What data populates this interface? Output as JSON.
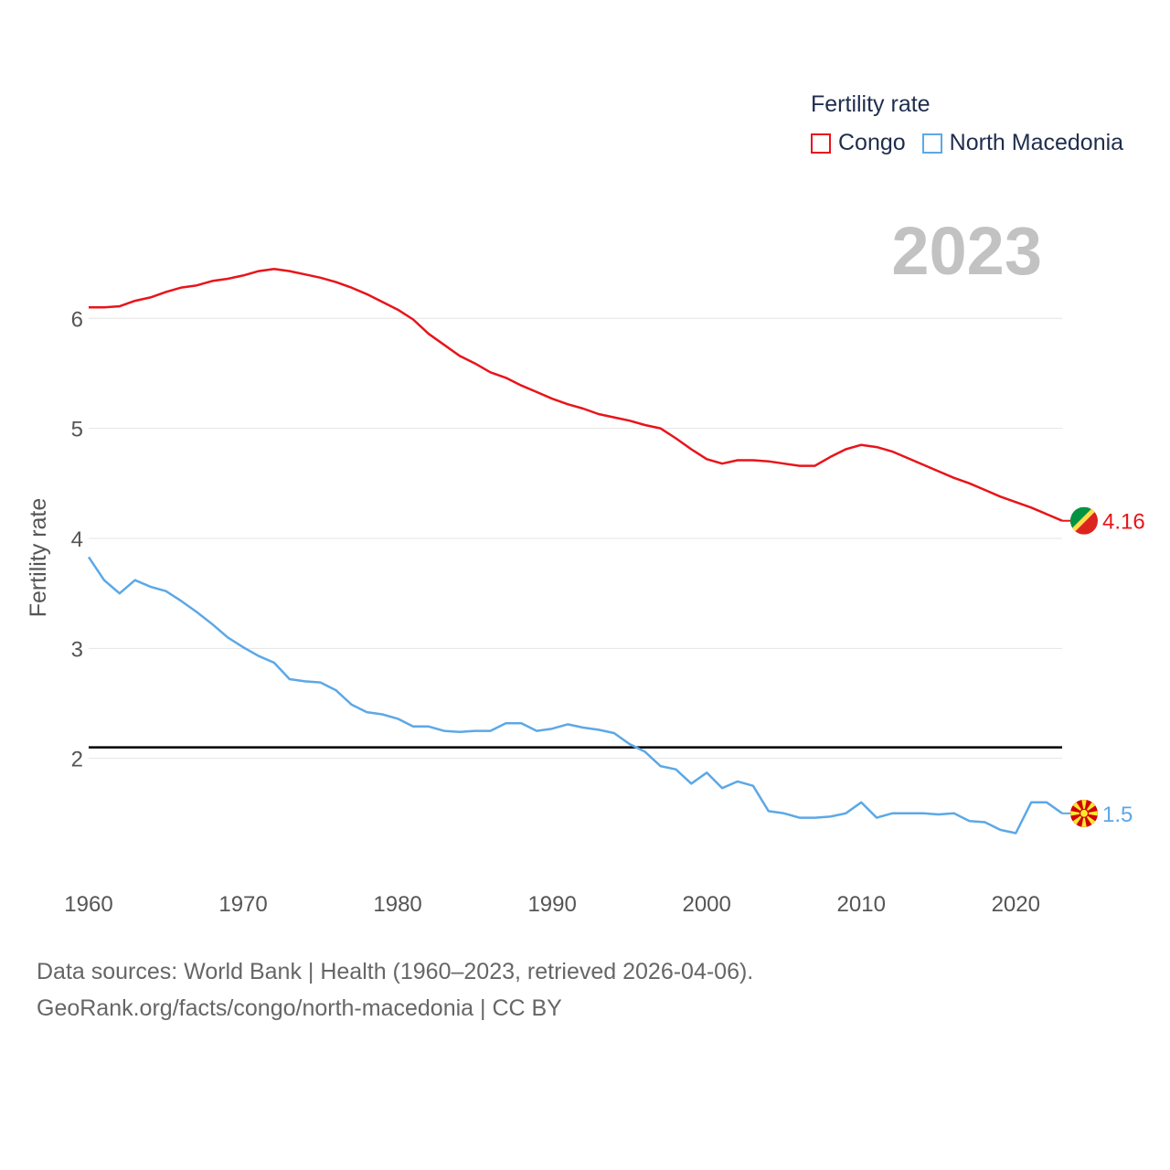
{
  "legend": {
    "title": "Fertility rate",
    "items": [
      {
        "label": "Congo",
        "color": "#e8141b"
      },
      {
        "label": "North Macedonia",
        "color": "#5ca8e6"
      }
    ]
  },
  "footer": {
    "line1": "Data sources: World Bank | Health (1960–2023, retrieved 2026-04-06).",
    "line2": "GeoRank.org/facts/congo/north-macedonia | CC BY"
  },
  "chart_data": {
    "type": "line",
    "year_label": "2023",
    "ylabel": "Fertility rate",
    "xlim": [
      1960,
      2023
    ],
    "ylim": [
      1.0,
      6.9
    ],
    "x_ticks": [
      1960,
      1970,
      1980,
      1990,
      2000,
      2010,
      2020
    ],
    "y_ticks": [
      2,
      3,
      4,
      5,
      6
    ],
    "reference_line": 2.1,
    "x": [
      1960,
      1961,
      1962,
      1963,
      1964,
      1965,
      1966,
      1967,
      1968,
      1969,
      1970,
      1971,
      1972,
      1973,
      1974,
      1975,
      1976,
      1977,
      1978,
      1979,
      1980,
      1981,
      1982,
      1983,
      1984,
      1985,
      1986,
      1987,
      1988,
      1989,
      1990,
      1991,
      1992,
      1993,
      1994,
      1995,
      1996,
      1997,
      1998,
      1999,
      2000,
      2001,
      2002,
      2003,
      2004,
      2005,
      2006,
      2007,
      2008,
      2009,
      2010,
      2011,
      2012,
      2013,
      2014,
      2015,
      2016,
      2017,
      2018,
      2019,
      2020,
      2021,
      2022,
      2023
    ],
    "series": [
      {
        "name": "Congo",
        "color": "#e8141b",
        "end_label": "4.16",
        "values": [
          6.1,
          6.1,
          6.11,
          6.16,
          6.19,
          6.24,
          6.28,
          6.3,
          6.34,
          6.36,
          6.39,
          6.43,
          6.45,
          6.43,
          6.4,
          6.37,
          6.33,
          6.28,
          6.22,
          6.15,
          6.08,
          5.99,
          5.86,
          5.76,
          5.66,
          5.59,
          5.51,
          5.46,
          5.39,
          5.33,
          5.27,
          5.22,
          5.18,
          5.13,
          5.1,
          5.07,
          5.03,
          5.0,
          4.91,
          4.81,
          4.72,
          4.68,
          4.71,
          4.71,
          4.7,
          4.68,
          4.66,
          4.66,
          4.74,
          4.81,
          4.85,
          4.83,
          4.79,
          4.73,
          4.67,
          4.61,
          4.55,
          4.5,
          4.44,
          4.38,
          4.33,
          4.28,
          4.22,
          4.16
        ]
      },
      {
        "name": "North Macedonia",
        "color": "#5ca8e6",
        "end_label": "1.5",
        "values": [
          3.83,
          3.62,
          3.5,
          3.62,
          3.56,
          3.52,
          3.43,
          3.33,
          3.22,
          3.1,
          3.01,
          2.93,
          2.87,
          2.72,
          2.7,
          2.69,
          2.62,
          2.49,
          2.42,
          2.4,
          2.36,
          2.29,
          2.29,
          2.25,
          2.24,
          2.25,
          2.25,
          2.32,
          2.32,
          2.25,
          2.27,
          2.31,
          2.28,
          2.26,
          2.23,
          2.13,
          2.06,
          1.93,
          1.9,
          1.77,
          1.87,
          1.73,
          1.79,
          1.75,
          1.52,
          1.5,
          1.46,
          1.46,
          1.47,
          1.5,
          1.6,
          1.46,
          1.5,
          1.5,
          1.5,
          1.49,
          1.5,
          1.43,
          1.42,
          1.35,
          1.32,
          1.6,
          1.6,
          1.5
        ]
      }
    ]
  }
}
